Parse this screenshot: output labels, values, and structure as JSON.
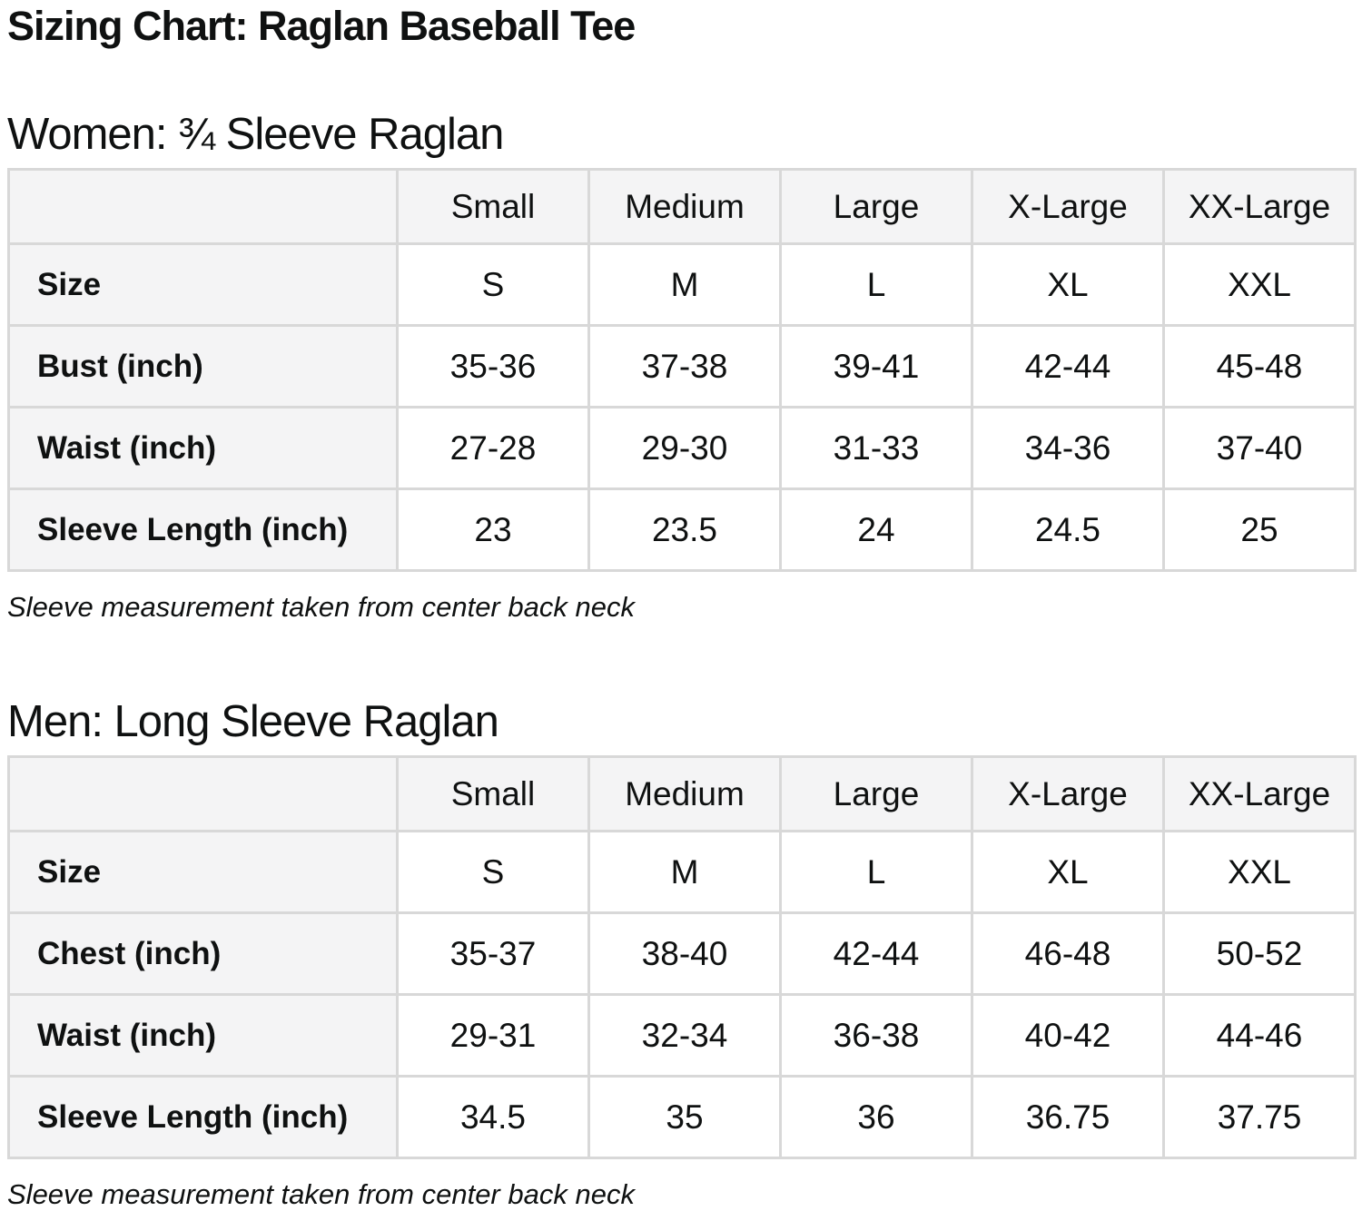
{
  "page": {
    "title": "Sizing Chart: Raglan Baseball Tee"
  },
  "colors": {
    "text": "#0f1111",
    "header_cell_bg": "#f4f4f5",
    "data_cell_bg": "#ffffff",
    "border": "#d8d8d8",
    "page_bg": "#ffffff"
  },
  "sections": [
    {
      "heading": "Women: ¾ Sleeve Raglan",
      "note": "Sleeve measurement taken from center back neck",
      "table": {
        "columns": [
          "Small",
          "Medium",
          "Large",
          "X-Large",
          "XX-Large"
        ],
        "rows": [
          {
            "label": "Size",
            "values": [
              "S",
              "M",
              "L",
              "XL",
              "XXL"
            ]
          },
          {
            "label": "Bust (inch)",
            "values": [
              "35-36",
              "37-38",
              "39-41",
              "42-44",
              "45-48"
            ]
          },
          {
            "label": "Waist (inch)",
            "values": [
              "27-28",
              "29-30",
              "31-33",
              "34-36",
              "37-40"
            ]
          },
          {
            "label": "Sleeve Length (inch)",
            "values": [
              "23",
              "23.5",
              "24",
              "24.5",
              "25"
            ]
          }
        ]
      }
    },
    {
      "heading": "Men: Long Sleeve Raglan",
      "note": "Sleeve measurement taken from center back neck",
      "table": {
        "columns": [
          "Small",
          "Medium",
          "Large",
          "X-Large",
          "XX-Large"
        ],
        "rows": [
          {
            "label": "Size",
            "values": [
              "S",
              "M",
              "L",
              "XL",
              "XXL"
            ]
          },
          {
            "label": "Chest (inch)",
            "values": [
              "35-37",
              "38-40",
              "42-44",
              "46-48",
              "50-52"
            ]
          },
          {
            "label": "Waist (inch)",
            "values": [
              "29-31",
              "32-34",
              "36-38",
              "40-42",
              "44-46"
            ]
          },
          {
            "label": "Sleeve Length (inch)",
            "values": [
              "34.5",
              "35",
              "36",
              "36.75",
              "37.75"
            ]
          }
        ]
      }
    }
  ]
}
